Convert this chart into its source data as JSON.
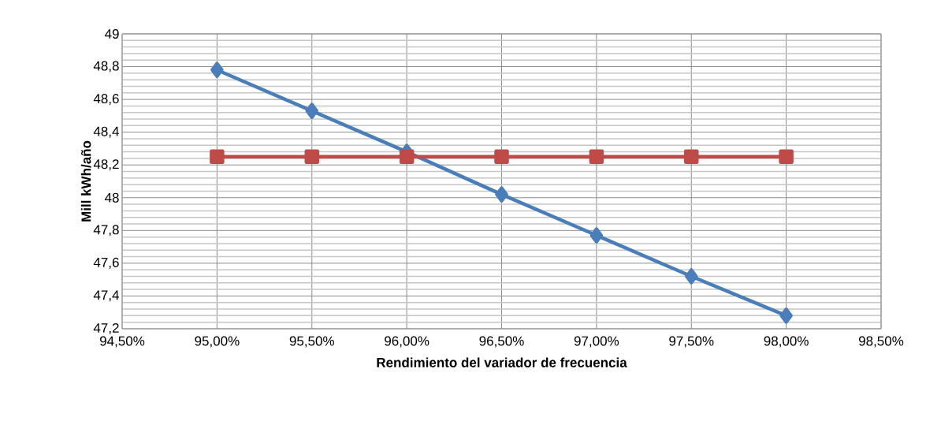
{
  "chart_data": {
    "type": "line",
    "xlabel": "Rendimiento del variador de frecuencia",
    "ylabel": "Mill kWh/año",
    "x": [
      95.0,
      95.5,
      96.0,
      96.5,
      97.0,
      97.5,
      98.0
    ],
    "series": [
      {
        "color": "#4a7ebb",
        "marker": "diamond",
        "values": [
          48.78,
          48.53,
          48.28,
          48.02,
          47.77,
          47.52,
          47.28
        ]
      },
      {
        "color": "#be4b48",
        "marker": "square",
        "values": [
          48.25,
          48.25,
          48.25,
          48.25,
          48.25,
          48.25,
          48.25
        ]
      }
    ],
    "xlim": [
      94.5,
      98.5
    ],
    "xticks": [
      {
        "value": 94.5,
        "label": "94,50%"
      },
      {
        "value": 95.0,
        "label": "95,00%"
      },
      {
        "value": 95.5,
        "label": "95,50%"
      },
      {
        "value": 96.0,
        "label": "96,00%"
      },
      {
        "value": 96.5,
        "label": "96,50%"
      },
      {
        "value": 97.0,
        "label": "97,00%"
      },
      {
        "value": 97.5,
        "label": "97,50%"
      },
      {
        "value": 98.0,
        "label": "98,00%"
      },
      {
        "value": 98.5,
        "label": "98,50%"
      }
    ],
    "ylim": [
      47.2,
      49
    ],
    "yticks": [
      {
        "value": 47.2,
        "label": "47,2"
      },
      {
        "value": 47.4,
        "label": "47,4"
      },
      {
        "value": 47.6,
        "label": "47,6"
      },
      {
        "value": 47.8,
        "label": "47,8"
      },
      {
        "value": 48,
        "label": "48"
      },
      {
        "value": 48.2,
        "label": "48,2"
      },
      {
        "value": 48.4,
        "label": "48,4"
      },
      {
        "value": 48.6,
        "label": "48,6"
      },
      {
        "value": 48.8,
        "label": "48,8"
      },
      {
        "value": 49,
        "label": "49"
      }
    ],
    "grid": true,
    "line_style": "solid"
  }
}
